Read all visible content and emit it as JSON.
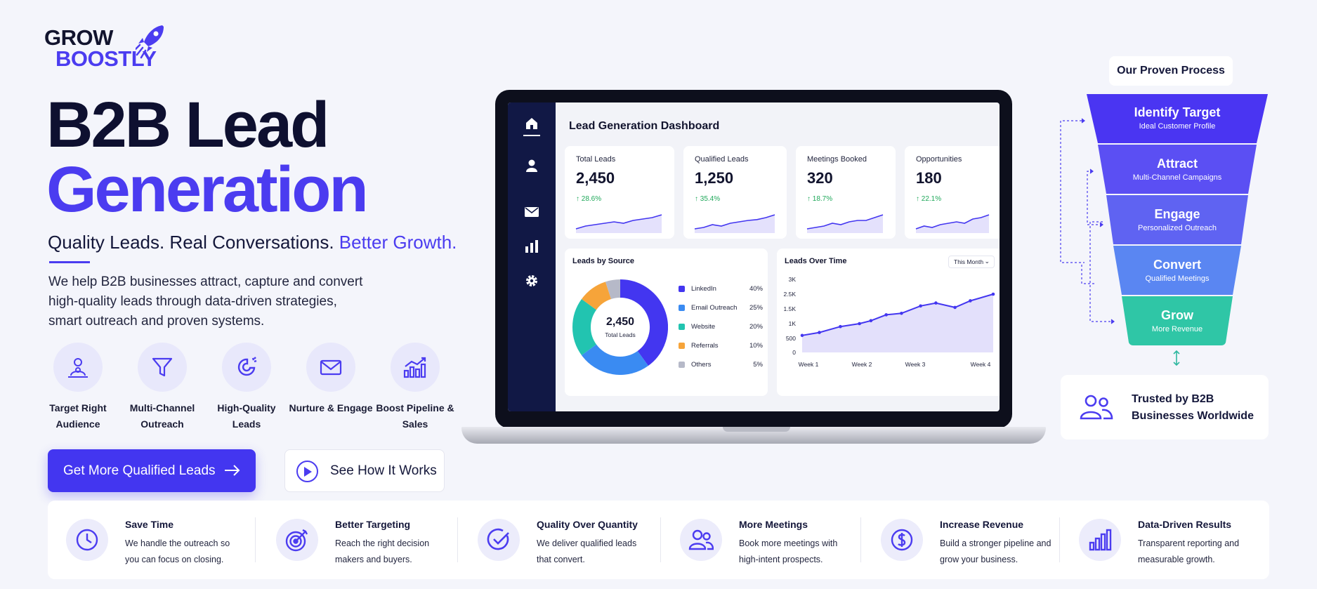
{
  "brand": {
    "line1": "GROW",
    "line2": "BOOSTLY",
    "icon": "rocket-icon"
  },
  "hero": {
    "title_line1": "B2B Lead",
    "title_line2": "Generation",
    "tagline_main": "Quality Leads. Real Conversations.",
    "tagline_accent": "Better Growth.",
    "description": "We help B2B businesses attract, capture and convert high-quality leads through data-driven strategies, smart outreach and proven systems."
  },
  "features": [
    {
      "icon": "target-audience-icon",
      "label": "Target Right Audience"
    },
    {
      "icon": "funnel-icon",
      "label": "Multi-Channel Outreach"
    },
    {
      "icon": "magnet-icon",
      "label": "High-Quality Leads"
    },
    {
      "icon": "mail-icon",
      "label": "Nurture & Engage"
    },
    {
      "icon": "growth-chart-icon",
      "label": "Boost Pipeline & Sales"
    }
  ],
  "cta": {
    "primary": "Get More Qualified Leads",
    "secondary": "See How It Works"
  },
  "dashboard": {
    "title": "Lead Generation Dashboard",
    "sidebar_icons": [
      "home-icon",
      "user-icon",
      "mail-icon",
      "bar-chart-icon",
      "gear-icon"
    ],
    "stats": [
      {
        "label": "Total Leads",
        "value": "2,450",
        "change": "↑ 28.6%",
        "trend": [
          3,
          4,
          4.5,
          5,
          5.5,
          5,
          6,
          6.5,
          7,
          8
        ]
      },
      {
        "label": "Qualified Leads",
        "value": "1,250",
        "change": "↑ 35.4%",
        "trend": [
          3,
          3.5,
          4.5,
          4,
          5,
          5.5,
          6,
          6.3,
          7,
          8
        ]
      },
      {
        "label": "Meetings Booked",
        "value": "320",
        "change": "↑ 18.7%",
        "trend": [
          3,
          3.5,
          4,
          5,
          4.5,
          5.5,
          6,
          6,
          7,
          8
        ]
      },
      {
        "label": "Opportunities",
        "value": "180",
        "change": "↑ 22.1%",
        "trend": [
          3,
          4,
          3.5,
          4.5,
          5,
          5.5,
          5,
          6.5,
          7,
          8
        ]
      }
    ],
    "leads_by_source": {
      "title": "Leads by Source",
      "center_value": "2,450",
      "center_label": "Total Leads",
      "items": [
        {
          "name": "LinkedIn",
          "pct": "40%",
          "value": 40,
          "color": "#4336f0"
        },
        {
          "name": "Email Outreach",
          "pct": "25%",
          "value": 25,
          "color": "#3a8bf2"
        },
        {
          "name": "Website",
          "pct": "20%",
          "value": 20,
          "color": "#22c4b0"
        },
        {
          "name": "Referrals",
          "pct": "10%",
          "value": 10,
          "color": "#f6a43a"
        },
        {
          "name": "Others",
          "pct": "5%",
          "value": 5,
          "color": "#b6b9c8"
        }
      ]
    },
    "leads_over_time": {
      "title": "Leads Over Time",
      "filter": "This Month",
      "y_ticks": [
        "3K",
        "2.5K",
        "1.5K",
        "1K",
        "500",
        "0"
      ],
      "x_ticks": [
        "Week 1",
        "Week 2",
        "Week 3",
        "Week 4"
      ]
    }
  },
  "chart_data": [
    {
      "type": "pie",
      "title": "Leads by Source",
      "categories": [
        "LinkedIn",
        "Email Outreach",
        "Website",
        "Referrals",
        "Others"
      ],
      "values": [
        40,
        25,
        20,
        10,
        5
      ]
    },
    {
      "type": "line",
      "title": "Leads Over Time",
      "x": [
        1,
        1.45,
        2,
        2.5,
        2.8,
        3.2,
        3.6,
        4.1,
        4.5,
        5,
        5.4,
        6
      ],
      "y": [
        600,
        700,
        900,
        1000,
        1100,
        1300,
        1350,
        1700,
        1900,
        1600,
        2050,
        2500
      ],
      "x_ticks": [
        "Week 1",
        "Week 2",
        "Week 3",
        "Week 4"
      ],
      "y_ticks": [
        "3K",
        "2.5K",
        "1.5K",
        "1K",
        "500",
        "0"
      ],
      "ylim": [
        0,
        3000
      ]
    }
  ],
  "process": {
    "title": "Our Proven Process",
    "steps": [
      {
        "title": "Identify Target",
        "sub": "Ideal Customer Profile",
        "color": "#4a35f2"
      },
      {
        "title": "Attract",
        "sub": "Multi-Channel Campaigns",
        "color": "#5b4ff3"
      },
      {
        "title": "Engage",
        "sub": "Personalized Outreach",
        "color": "#5f63f2"
      },
      {
        "title": "Convert",
        "sub": "Qualified Meetings",
        "color": "#5a86f2"
      },
      {
        "title": "Grow",
        "sub": "More Revenue",
        "color": "#2fc6a6"
      }
    ]
  },
  "trust": {
    "text_line1": "Trusted by B2B",
    "text_line2": "Businesses Worldwide",
    "icon": "users-icon"
  },
  "benefits": [
    {
      "icon": "clock-icon",
      "title": "Save Time",
      "desc": "We handle the outreach so you can focus on closing."
    },
    {
      "icon": "target-icon",
      "title": "Better Targeting",
      "desc": "Reach the right decision makers and buyers."
    },
    {
      "icon": "check-badge-icon",
      "title": "Quality Over Quantity",
      "desc": "We deliver qualified leads that convert."
    },
    {
      "icon": "meeting-icon",
      "title": "More Meetings",
      "desc": "Book more meetings with high-intent prospects."
    },
    {
      "icon": "dollar-icon",
      "title": "Increase Revenue",
      "desc": "Build a stronger pipeline and grow your business."
    },
    {
      "icon": "bar-chart-icon",
      "title": "Data-Driven Results",
      "desc": "Transparent reporting and measurable growth."
    }
  ]
}
